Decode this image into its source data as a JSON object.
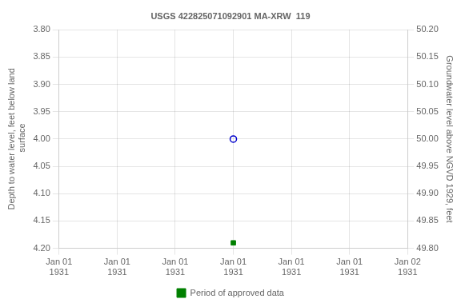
{
  "chart_data": {
    "type": "scatter",
    "title": "USGS 422825071092901 MA-XRW  119",
    "y_label": "Depth to water level, feet below land\n surface",
    "y2_label": "Groundwater level above NGVD 1929, feet",
    "categories": [
      "Jan 01\n1931",
      "Jan 01\n1931",
      "Jan 01\n1931",
      "Jan 01\n1931",
      "Jan 01\n1931",
      "Jan 01\n1931",
      "Jan 02\n1931"
    ],
    "series": [
      {
        "color": "#0000cc",
        "marker": "circle-open",
        "values": [
          null,
          null,
          null,
          4.0,
          null,
          null,
          null
        ]
      },
      {
        "name": "Period of approved data",
        "color": "#008000",
        "marker": "square",
        "values": [
          null,
          null,
          null,
          4.19,
          null,
          null,
          null
        ]
      }
    ],
    "ylim": [
      4.2,
      3.8
    ],
    "yticks": [
      {
        "value": 3.8,
        "label": "3.80"
      },
      3.85,
      {
        "value": 3.9,
        "label": "3.90"
      },
      3.95,
      {
        "value": 4,
        "label": "4.00"
      },
      4.05,
      {
        "value": 4.1,
        "label": "4.10"
      },
      4.15,
      {
        "value": 4.2,
        "label": "4.20"
      }
    ],
    "y2lim": [
      49.8,
      50.2
    ],
    "y2ticks": [
      {
        "value": 49.8,
        "label": "49.80"
      },
      49.85,
      {
        "value": 49.9,
        "label": "49.90"
      },
      49.95,
      {
        "value": 50,
        "label": "50.00"
      },
      50.05,
      {
        "value": 50.1,
        "label": "50.10"
      },
      50.15,
      {
        "value": 50.2,
        "label": "50.20"
      }
    ],
    "grid": true,
    "legend": "bottom"
  }
}
